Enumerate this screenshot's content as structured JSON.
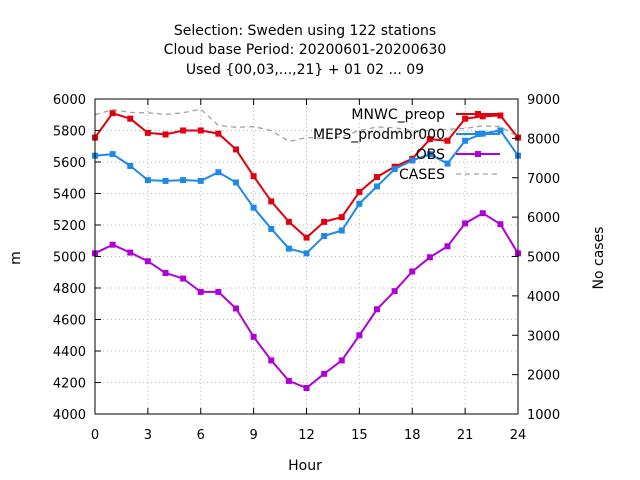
{
  "chart_data": {
    "type": "line",
    "title": [
      "Selection: Sweden using   122 stations",
      "Cloud base   Period: 20200601-20200630",
      "Used {00,03,...,21} + 01 02 ... 09"
    ],
    "xlabel": "Hour",
    "ylabel": "m",
    "y2label": "No cases",
    "xlim": [
      0,
      24
    ],
    "ylim": [
      4000,
      6000
    ],
    "y2lim": [
      1000,
      9000
    ],
    "xticks": [
      0,
      3,
      6,
      9,
      12,
      15,
      18,
      21,
      24
    ],
    "yticks": [
      4000,
      4200,
      4400,
      4600,
      4800,
      5000,
      5200,
      5400,
      5600,
      5800,
      6000
    ],
    "y2ticks": [
      1000,
      2000,
      3000,
      4000,
      5000,
      6000,
      7000,
      8000,
      9000
    ],
    "grid": true,
    "legend_position": "top-right",
    "x": [
      0,
      1,
      2,
      3,
      4,
      5,
      6,
      7,
      8,
      9,
      10,
      11,
      12,
      13,
      14,
      15,
      16,
      17,
      18,
      19,
      20,
      21,
      22,
      23,
      24
    ],
    "series": [
      {
        "name": "MNWC_preop",
        "color": "#e0000f",
        "marker": "square",
        "values": [
          5755,
          5910,
          5875,
          5785,
          5775,
          5800,
          5800,
          5780,
          5680,
          5510,
          5350,
          5220,
          5120,
          5220,
          5250,
          5410,
          5505,
          5570,
          5620,
          5745,
          5735,
          5875,
          5890,
          5895,
          5755
        ]
      },
      {
        "name": "MEPS_prodmbr000",
        "color": "#1f88e8",
        "marker": "square",
        "values": [
          5640,
          5650,
          5575,
          5485,
          5480,
          5485,
          5480,
          5535,
          5470,
          5310,
          5175,
          5050,
          5020,
          5130,
          5165,
          5335,
          5445,
          5555,
          5610,
          5650,
          5590,
          5735,
          5780,
          5800,
          5640
        ]
      },
      {
        "name": "OBS",
        "color": "#b000d8",
        "marker": "square",
        "values": [
          5020,
          5075,
          5025,
          4970,
          4895,
          4860,
          4775,
          4775,
          4670,
          4490,
          4340,
          4210,
          4165,
          4255,
          4340,
          4500,
          4665,
          4780,
          4905,
          4995,
          5065,
          5210,
          5275,
          5205,
          5020
        ]
      },
      {
        "name": "CASES",
        "color": "#a0a0a0",
        "dash": true,
        "axis": "y2",
        "values": [
          8600,
          8730,
          8660,
          8650,
          8610,
          8650,
          8740,
          8330,
          8280,
          8300,
          8200,
          7920,
          8020,
          8000,
          8040,
          8200,
          8290,
          8270,
          8190,
          8200,
          8230,
          8250,
          8320,
          8300,
          8040
        ]
      }
    ]
  }
}
